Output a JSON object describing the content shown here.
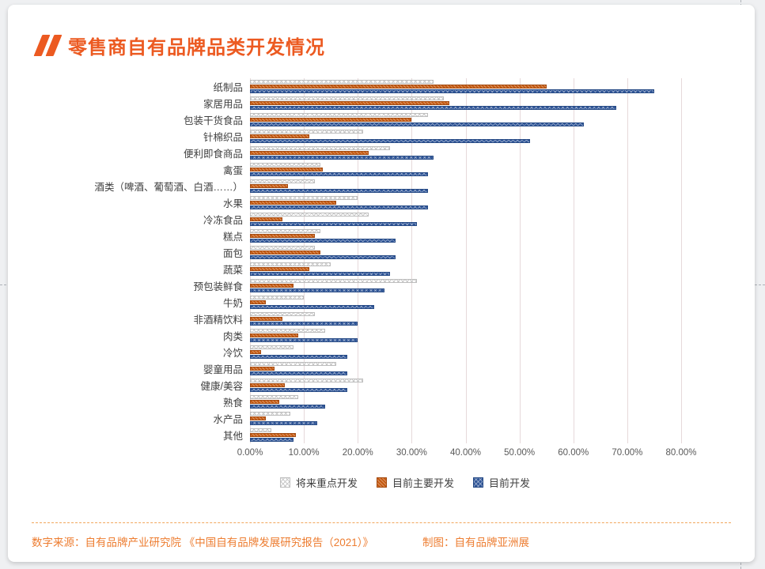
{
  "title": "零售商自有品牌品类开发情况",
  "footer": {
    "source": "数字来源：自有品牌产业研究院 《中国自有品牌发展研究报告（2021）》",
    "credit": "制图：自有品牌亚洲展"
  },
  "colors": {
    "accent_orange": "#EC5A21",
    "bar_orange": "#C55A11",
    "bar_blue": "#2F5597",
    "footer_orange": "#ED7D31",
    "gridline": "#E6D9DA"
  },
  "chart_data": {
    "type": "bar",
    "orientation": "horizontal",
    "title": "零售商自有品牌品类开发情况",
    "categories": [
      "纸制品",
      "家居用品",
      "包装干货食品",
      "针棉织品",
      "便利即食商品",
      "禽蛋",
      "酒类（啤酒、葡萄酒、白酒……）",
      "水果",
      "冷冻食品",
      "糕点",
      "面包",
      "蔬菜",
      "预包装鲜食",
      "牛奶",
      "非酒精饮料",
      "肉类",
      "冷饮",
      "婴童用品",
      "健康/美容",
      "熟食",
      "水产品",
      "其他"
    ],
    "series": [
      {
        "name": "将来重点开发",
        "key": "future",
        "values": [
          34,
          36,
          33,
          21,
          26,
          13,
          12,
          20,
          22,
          13,
          12,
          15,
          31,
          10,
          12,
          14,
          8,
          16,
          21,
          9,
          7.5,
          4
        ]
      },
      {
        "name": "目前主要开发",
        "key": "main",
        "values": [
          55,
          37,
          30,
          11,
          22,
          13.5,
          7,
          16,
          6,
          12,
          13,
          11,
          8,
          3,
          6,
          9,
          2,
          4.5,
          6.5,
          5.5,
          3,
          8.5
        ]
      },
      {
        "name": "目前开发",
        "key": "dev",
        "values": [
          75,
          68,
          62,
          52,
          34,
          33,
          33,
          33,
          31,
          27,
          27,
          26,
          25,
          23,
          20,
          20,
          18,
          18,
          18,
          14,
          12.5,
          8
        ]
      }
    ],
    "x_ticks": [
      "0.00%",
      "10.00%",
      "20.00%",
      "30.00%",
      "40.00%",
      "50.00%",
      "60.00%",
      "70.00%",
      "80.00%"
    ],
    "x_max": 80,
    "grid": true,
    "legend_position": "bottom"
  }
}
